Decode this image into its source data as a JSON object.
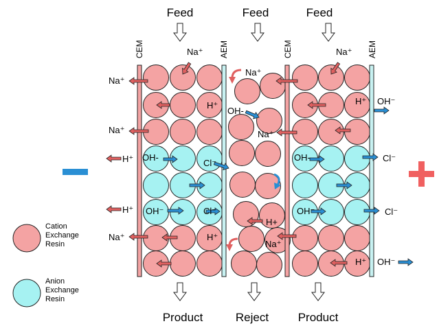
{
  "labels": {
    "feed": "Feed",
    "product": "Product",
    "reject": "Reject",
    "cem": "CEM",
    "aem": "AEM",
    "na": "Na⁺",
    "h": "H⁺",
    "hplus": "H+",
    "oh": "OH⁻",
    "oh_dash": "OH-",
    "cl": "Cl⁻"
  },
  "legend": {
    "cation": [
      "Cation",
      "Exchange",
      "Resin"
    ],
    "anion": [
      "Anion",
      "Exchange",
      "Resin"
    ]
  },
  "colors": {
    "cation_resin": "#f4a3a3",
    "anion_resin": "#a6f2f2",
    "membrane_cem": "#f4a3a3",
    "membrane_aem": "#c8f2f2",
    "cation_arrow": "#e06060",
    "anion_arrow": "#2a8fd4",
    "negative_electrode": "#2a8fd4",
    "positive_electrode": "#f06060"
  }
}
